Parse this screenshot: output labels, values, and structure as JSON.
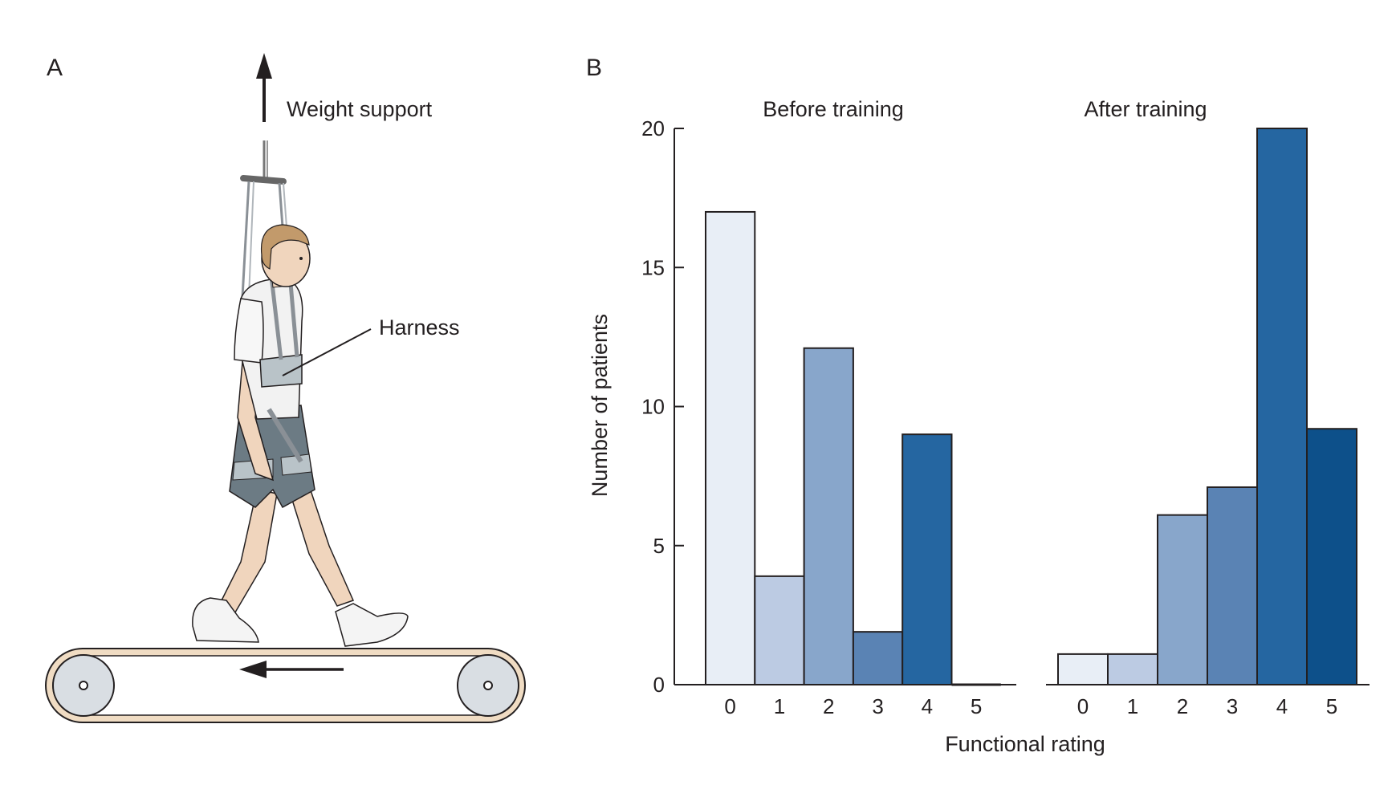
{
  "panel_a": {
    "letter": "A",
    "weight_support_label": "Weight support",
    "harness_label": "Harness"
  },
  "panel_b": {
    "letter": "B"
  },
  "colors": {
    "level0": "#e8eef6",
    "level1": "#bccbe3",
    "level2": "#88a6cb",
    "level3": "#5a83b4",
    "level4": "#2566a1",
    "level5": "#0d508a",
    "outline": "#231f20"
  },
  "chart_data": {
    "type": "bar",
    "ylabel": "Number of patients",
    "xlabel": "Functional rating",
    "ylim": [
      0,
      20
    ],
    "yticks": [
      "0",
      "5",
      "10",
      "15",
      "20"
    ],
    "grid": false,
    "panels": [
      {
        "title": "Before training",
        "categories": [
          "0",
          "1",
          "2",
          "3",
          "4",
          "5"
        ],
        "values": [
          17,
          3.9,
          12.1,
          1.9,
          9,
          0
        ]
      },
      {
        "title": "After training",
        "categories": [
          "0",
          "1",
          "2",
          "3",
          "4",
          "5"
        ],
        "values": [
          1.1,
          1.1,
          6.1,
          7.1,
          20,
          9.2
        ]
      }
    ]
  }
}
